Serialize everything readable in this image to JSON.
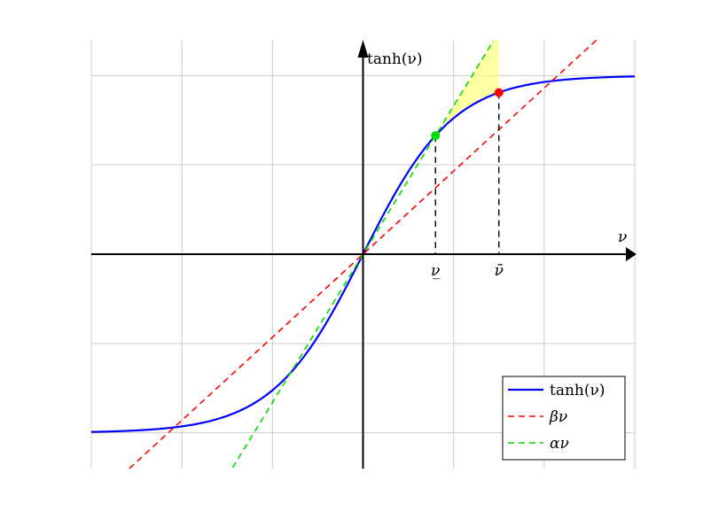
{
  "chart_data": {
    "type": "line",
    "title": "",
    "xlabel": "ν",
    "ylabel": "tanh(ν)",
    "xlim": [
      -3,
      3
    ],
    "ylim": [
      -1.2,
      1.2
    ],
    "grid": true,
    "x_ticks": [
      -3,
      -2,
      -1,
      0,
      1,
      2,
      3
    ],
    "y_ticks": [
      -1,
      -0.5,
      0,
      0.5,
      1
    ],
    "series": [
      {
        "name": "tanh(ν)",
        "kind": "tanh",
        "color": "#0000ff",
        "style": "solid"
      },
      {
        "name": "βν",
        "kind": "linear",
        "slope": 0.465,
        "color": "#ff0000",
        "style": "dashed"
      },
      {
        "name": "αν",
        "kind": "linear",
        "slope": 0.83,
        "color": "#00dd00",
        "style": "dashed"
      }
    ],
    "points": [
      {
        "x": 0.8,
        "y": 0.664,
        "color": "#00dd00"
      },
      {
        "x": 1.5,
        "y": 0.905,
        "color": "#ff0000"
      }
    ],
    "markers": [
      {
        "x": 0.8,
        "label": "ν̲"
      },
      {
        "x": 1.5,
        "label": "ν̄"
      }
    ],
    "highlight": {
      "x_from": 0.8,
      "x_to": 1.5,
      "color": "#ffff66"
    },
    "legend": {
      "position": "bottom-right",
      "entries": [
        "tanh(ν)",
        "βν",
        "αν"
      ]
    }
  }
}
